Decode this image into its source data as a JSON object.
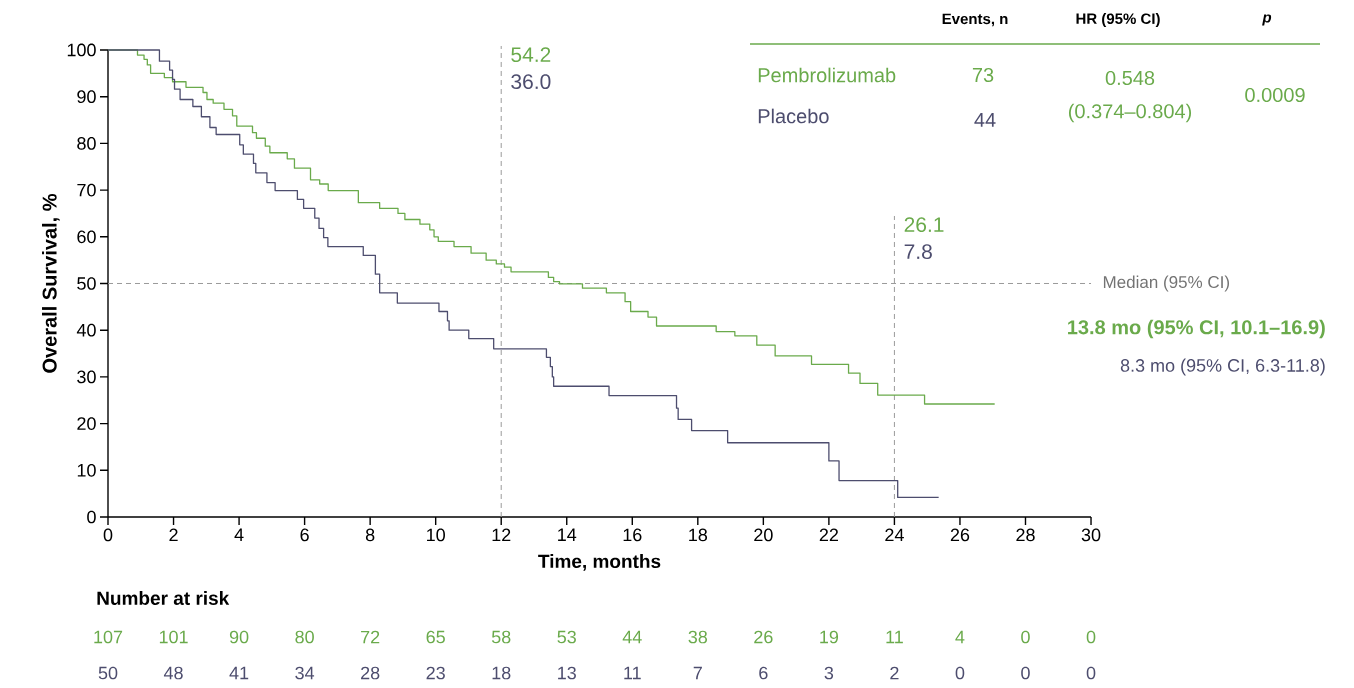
{
  "chart_data": {
    "type": "step",
    "xlabel": "Time, months",
    "ylabel": "Overall Survival, %",
    "xlim": [
      0,
      30
    ],
    "ylim": [
      0,
      100
    ],
    "xticks": [
      0,
      2,
      4,
      6,
      8,
      10,
      12,
      14,
      16,
      18,
      20,
      22,
      24,
      26,
      28,
      30
    ],
    "yticks": [
      0,
      10,
      20,
      30,
      40,
      50,
      60,
      70,
      80,
      90,
      100
    ],
    "series": [
      {
        "name": "Pembrolizumab",
        "color": "#6aaa4b",
        "x": [
          0,
          0.9,
          1.1,
          1.2,
          1.3,
          1.72,
          1.97,
          2.38,
          2.9,
          3.02,
          3.21,
          3.54,
          3.8,
          3.93,
          4.41,
          4.53,
          4.8,
          4.94,
          5.47,
          5.69,
          6.18,
          6.46,
          6.72,
          7.64,
          8.29,
          8.85,
          9.06,
          9.52,
          9.82,
          9.95,
          10.08,
          10.56,
          11.08,
          11.54,
          11.85,
          12.1,
          12.3,
          13.44,
          13.6,
          13.78,
          14.48,
          15.21,
          15.78,
          15.95,
          16.48,
          16.74,
          18.56,
          19.13,
          19.8,
          20.36,
          21.47,
          22.6,
          22.95,
          23.49,
          24.92,
          27.06
        ],
        "values": [
          100,
          98.9,
          98,
          96.8,
          95,
          94.1,
          93.2,
          92,
          90.9,
          89.4,
          88.6,
          87.3,
          85.9,
          83.7,
          82.3,
          81.1,
          79.4,
          78,
          76.7,
          74.7,
          72.2,
          71.3,
          69.9,
          67.3,
          66.1,
          65,
          63.7,
          62.7,
          61.5,
          60,
          59,
          57.9,
          56.5,
          55,
          54.2,
          53.5,
          52.5,
          51.3,
          50.4,
          49.9,
          49,
          48,
          46.1,
          44,
          42.8,
          40.9,
          39.7,
          38.8,
          36.8,
          34.5,
          32.7,
          30.8,
          28.6,
          26.1,
          24.2,
          24.2
        ]
      },
      {
        "name": "Placebo",
        "color": "#4d4d6e",
        "x": [
          0,
          1.57,
          1.88,
          1.97,
          2.03,
          2.2,
          2.59,
          2.85,
          3.11,
          3.3,
          4.02,
          4.13,
          4.44,
          4.51,
          4.85,
          5.1,
          5.78,
          5.97,
          6.31,
          6.44,
          6.58,
          6.71,
          7.79,
          8.16,
          8.29,
          8.83,
          10.1,
          10.36,
          10.41,
          11.01,
          11.77,
          13.38,
          13.5,
          13.56,
          13.6,
          15.29,
          17.35,
          17.4,
          17.81,
          18.91,
          22.0,
          22.31,
          24.1,
          25.35
        ],
        "values": [
          100,
          97.6,
          95.7,
          93.7,
          91.6,
          89.4,
          87.9,
          85.7,
          83.4,
          81.9,
          79.7,
          77.7,
          75.7,
          73.7,
          71.6,
          69.9,
          68,
          66.1,
          64,
          61.8,
          59.8,
          57.9,
          56,
          52,
          48,
          45.8,
          44,
          42,
          40,
          38.2,
          36,
          34.2,
          32.2,
          30,
          28,
          26,
          23.3,
          20.9,
          18.5,
          15.9,
          12,
          7.8,
          4.2,
          4.2
        ]
      }
    ],
    "ref_lines": [
      {
        "axis": "x",
        "value": 12,
        "color": "#9a9a9a",
        "line_style": "dashed"
      },
      {
        "axis": "x",
        "value": 24,
        "color": "#9a9a9a",
        "line_style": "dashed"
      },
      {
        "axis": "y",
        "value": 50,
        "label": "Median (95% CI)",
        "color": "#9a9a9a",
        "line_style": "dashed"
      }
    ],
    "annotations": [
      "Events, n",
      "HR (95% CI)",
      "*p*",
      "73",
      "44",
      "0.548",
      "(0.374–0.804)",
      "0.0009",
      "13.8 mo (95% CI, 10.1–16.9)",
      "8.3 mo (95% CI, 6.3-11.8)",
      "Number at risk",
      "107",
      "101",
      "90",
      "80",
      "72",
      "65",
      "58",
      "53",
      "44",
      "38",
      "26",
      "19",
      "11",
      "4",
      "0",
      "0",
      "50",
      "48",
      "41",
      "34",
      "28",
      "23",
      "18",
      "13",
      "11",
      "7",
      "6",
      "3",
      "2",
      "0",
      "0",
      "0",
      "54.2",
      "36.0",
      "26.1",
      "7.8"
    ]
  }
}
